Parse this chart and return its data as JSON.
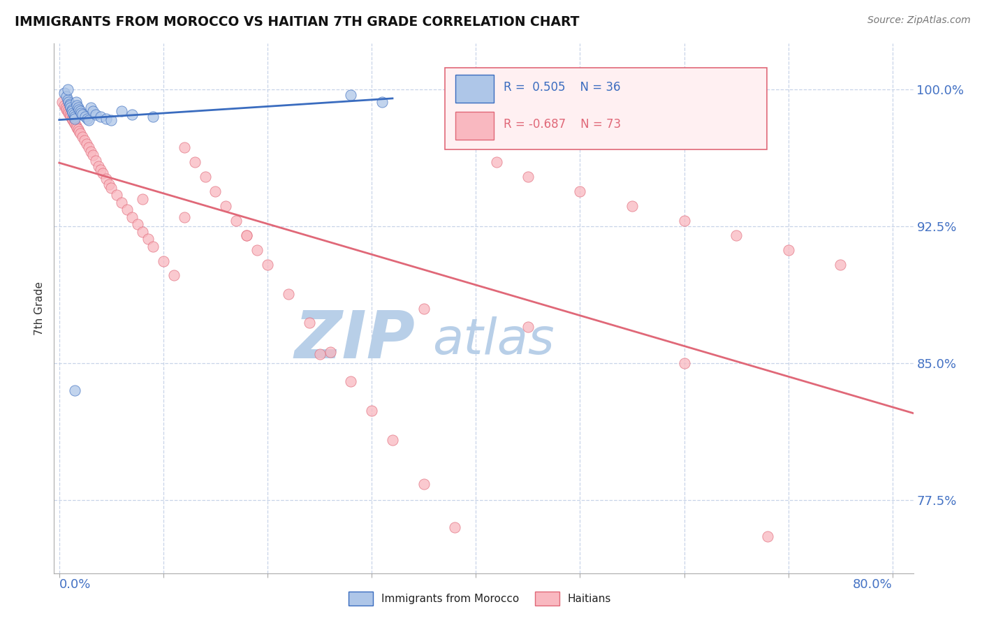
{
  "title": "IMMIGRANTS FROM MOROCCO VS HAITIAN 7TH GRADE CORRELATION CHART",
  "source_text": "Source: ZipAtlas.com",
  "ylabel": "7th Grade",
  "ymin": 0.735,
  "ymax": 1.025,
  "xmin": -0.005,
  "xmax": 0.82,
  "r_morocco": 0.505,
  "n_morocco": 36,
  "r_haitian": -0.687,
  "n_haitian": 73,
  "morocco_color": "#aec6e8",
  "haitian_color": "#f9b8c0",
  "morocco_line_color": "#3a6cbf",
  "haitian_line_color": "#e06878",
  "legend_box_bg": "#fff0f2",
  "legend_box_border": "#e06878",
  "watermark_zip_color": "#b8cfe8",
  "watermark_atlas_color": "#b8cfe8",
  "grid_color": "#c8d4e8",
  "tick_label_color": "#4472c4",
  "background_color": "#ffffff",
  "y_tick_vals": [
    0.775,
    0.85,
    0.925,
    1.0
  ],
  "y_tick_labels": [
    "77.5%",
    "85.0%",
    "92.5%",
    "100.0%"
  ],
  "morocco_x": [
    0.005,
    0.007,
    0.008,
    0.009,
    0.01,
    0.01,
    0.011,
    0.012,
    0.012,
    0.013,
    0.014,
    0.015,
    0.015,
    0.016,
    0.017,
    0.018,
    0.019,
    0.02,
    0.021,
    0.022,
    0.025,
    0.027,
    0.028,
    0.03,
    0.032,
    0.035,
    0.04,
    0.045,
    0.05,
    0.06,
    0.07,
    0.09,
    0.28,
    0.31,
    0.015,
    0.008
  ],
  "morocco_y": [
    0.998,
    0.996,
    0.994,
    0.993,
    0.992,
    0.991,
    0.99,
    0.989,
    0.988,
    0.987,
    0.986,
    0.985,
    0.984,
    0.993,
    0.991,
    0.99,
    0.989,
    0.988,
    0.987,
    0.986,
    0.985,
    0.984,
    0.983,
    0.99,
    0.988,
    0.986,
    0.985,
    0.984,
    0.983,
    0.988,
    0.986,
    0.985,
    0.997,
    0.993,
    0.835,
    1.0
  ],
  "haitian_x": [
    0.003,
    0.005,
    0.006,
    0.007,
    0.008,
    0.009,
    0.01,
    0.011,
    0.012,
    0.013,
    0.014,
    0.015,
    0.016,
    0.017,
    0.018,
    0.019,
    0.02,
    0.022,
    0.024,
    0.026,
    0.028,
    0.03,
    0.032,
    0.035,
    0.038,
    0.04,
    0.042,
    0.045,
    0.048,
    0.05,
    0.055,
    0.06,
    0.065,
    0.07,
    0.075,
    0.08,
    0.085,
    0.09,
    0.1,
    0.11,
    0.12,
    0.13,
    0.14,
    0.15,
    0.16,
    0.17,
    0.18,
    0.19,
    0.2,
    0.22,
    0.24,
    0.26,
    0.28,
    0.3,
    0.32,
    0.35,
    0.38,
    0.42,
    0.45,
    0.5,
    0.55,
    0.6,
    0.65,
    0.7,
    0.75,
    0.08,
    0.12,
    0.18,
    0.25,
    0.35,
    0.45,
    0.6,
    0.68
  ],
  "haitian_y": [
    0.993,
    0.991,
    0.99,
    0.989,
    0.988,
    0.987,
    0.986,
    0.985,
    0.984,
    0.983,
    0.982,
    0.981,
    0.98,
    0.979,
    0.978,
    0.977,
    0.976,
    0.974,
    0.972,
    0.97,
    0.968,
    0.966,
    0.964,
    0.961,
    0.958,
    0.956,
    0.954,
    0.951,
    0.948,
    0.946,
    0.942,
    0.938,
    0.934,
    0.93,
    0.926,
    0.922,
    0.918,
    0.914,
    0.906,
    0.898,
    0.968,
    0.96,
    0.952,
    0.944,
    0.936,
    0.928,
    0.92,
    0.912,
    0.904,
    0.888,
    0.872,
    0.856,
    0.84,
    0.824,
    0.808,
    0.784,
    0.76,
    0.96,
    0.952,
    0.944,
    0.936,
    0.928,
    0.92,
    0.912,
    0.904,
    0.94,
    0.93,
    0.92,
    0.855,
    0.88,
    0.87,
    0.85,
    0.755
  ]
}
